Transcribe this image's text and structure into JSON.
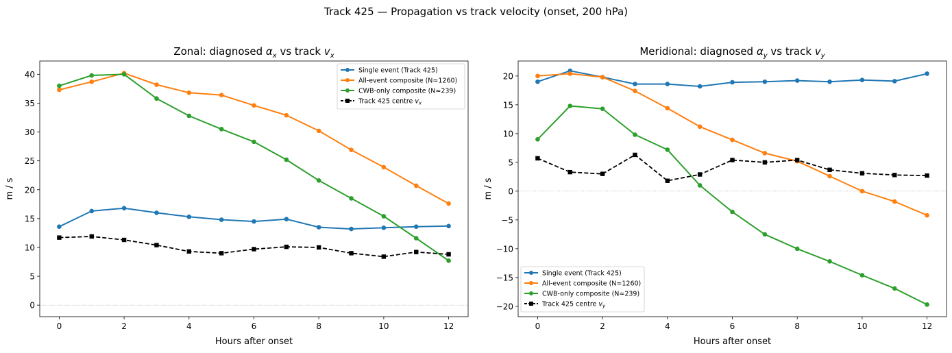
{
  "suptitle": "Track 425 — Propagation vs track velocity (onset, 200 hPa)",
  "chart_data": [
    {
      "type": "line",
      "title": "Zonal: diagnosed αx vs track vx",
      "title_parts": {
        "pre": "Zonal: diagnosed ",
        "sym1": "α",
        "sub1": "x",
        "mid": " vs track ",
        "sym2": "v",
        "sub2": "x"
      },
      "xlabel": "Hours after onset",
      "ylabel": "m / s",
      "xlim": [
        -0.6,
        12.6
      ],
      "ylim": [
        -2,
        42.3
      ],
      "xticks": [
        0,
        2,
        4,
        6,
        8,
        10,
        12
      ],
      "yticks": [
        0,
        5,
        10,
        15,
        20,
        25,
        30,
        35,
        40
      ],
      "zero_line": true,
      "legend_position": "upper right",
      "x": [
        0,
        1,
        2,
        3,
        4,
        5,
        6,
        7,
        8,
        9,
        10,
        11,
        12
      ],
      "series": [
        {
          "name": "Single event (Track 425)",
          "color": "#1f77b4",
          "style": "solid",
          "marker": "circle",
          "values": [
            13.6,
            16.3,
            16.8,
            16.0,
            15.3,
            14.8,
            14.5,
            14.9,
            13.5,
            13.2,
            13.4,
            13.6,
            13.7
          ]
        },
        {
          "name": "All-event composite (N≈1260)",
          "color": "#ff7f0e",
          "style": "solid",
          "marker": "circle",
          "values": [
            37.3,
            38.7,
            40.2,
            38.2,
            36.8,
            36.4,
            34.6,
            32.9,
            30.2,
            26.9,
            23.9,
            20.7,
            17.6
          ]
        },
        {
          "name": "CWB-only composite (N≈239)",
          "color": "#2ca02c",
          "style": "solid",
          "marker": "circle",
          "values": [
            38.0,
            39.8,
            40.0,
            35.8,
            32.8,
            30.5,
            28.3,
            25.2,
            21.6,
            18.5,
            15.4,
            11.6,
            7.7
          ]
        },
        {
          "name": "Track 425 centre vx",
          "color": "#000000",
          "style": "dashed",
          "marker": "square",
          "values": [
            11.7,
            11.9,
            11.3,
            10.4,
            9.3,
            9.0,
            9.7,
            10.1,
            10.0,
            9.0,
            8.4,
            9.2,
            8.8
          ]
        }
      ]
    },
    {
      "type": "line",
      "title": "Meridional: diagnosed αy vs track vy",
      "title_parts": {
        "pre": "Meridional: diagnosed ",
        "sym1": "α",
        "sub1": "y",
        "mid": " vs track ",
        "sym2": "v",
        "sub2": "y"
      },
      "xlabel": "Hours after onset",
      "ylabel": "m / s",
      "xlim": [
        -0.6,
        12.6
      ],
      "ylim": [
        -21.8,
        22.6
      ],
      "xticks": [
        0,
        2,
        4,
        6,
        8,
        10,
        12
      ],
      "yticks": [
        -20,
        -15,
        -10,
        -5,
        0,
        5,
        10,
        15,
        20
      ],
      "zero_line": true,
      "legend_position": "lower left",
      "x": [
        0,
        1,
        2,
        3,
        4,
        5,
        6,
        7,
        8,
        9,
        10,
        11,
        12
      ],
      "series": [
        {
          "name": "Single event (Track 425)",
          "color": "#1f77b4",
          "style": "solid",
          "marker": "circle",
          "values": [
            19.0,
            20.9,
            19.8,
            18.6,
            18.6,
            18.2,
            18.9,
            19.0,
            19.2,
            19.0,
            19.3,
            19.1,
            20.4
          ]
        },
        {
          "name": "All-event composite (N≈1260)",
          "color": "#ff7f0e",
          "style": "solid",
          "marker": "circle",
          "values": [
            20.0,
            20.4,
            19.8,
            17.4,
            14.4,
            11.2,
            8.9,
            6.6,
            5.2,
            2.6,
            0.0,
            -1.8,
            -4.2
          ]
        },
        {
          "name": "CWB-only composite (N≈239)",
          "color": "#2ca02c",
          "style": "solid",
          "marker": "circle",
          "values": [
            9.0,
            14.8,
            14.3,
            9.8,
            7.2,
            1.0,
            -3.6,
            -7.5,
            -10.0,
            -12.2,
            -14.6,
            -16.9,
            -19.7
          ]
        },
        {
          "name": "Track 425 centre vy",
          "color": "#000000",
          "style": "dashed",
          "marker": "square",
          "values": [
            5.7,
            3.3,
            3.0,
            6.3,
            1.8,
            2.9,
            5.4,
            5.0,
            5.4,
            3.7,
            3.1,
            2.8,
            2.7
          ]
        }
      ]
    }
  ]
}
